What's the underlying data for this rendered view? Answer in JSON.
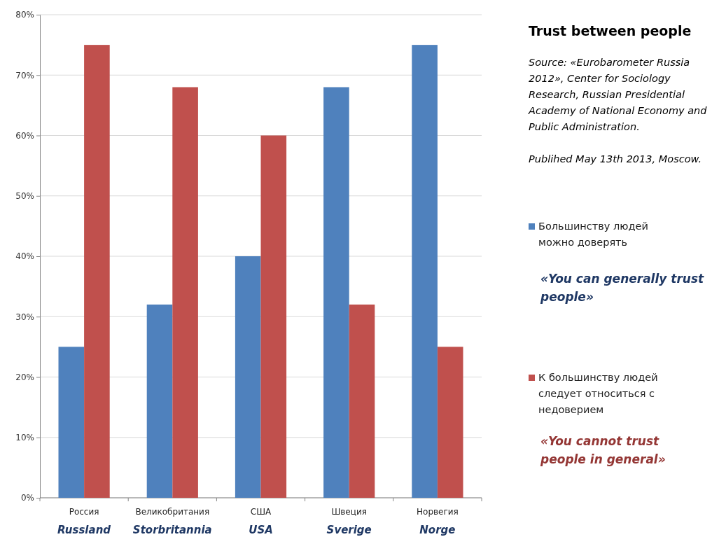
{
  "chart_data": {
    "type": "bar",
    "title": "Trust between people",
    "categories": [
      "Россия\nRussland",
      "Великобритания\nStorbritannia",
      "США\nUSA",
      "Швеция\nSverige",
      "Норвегия\nNorge"
    ],
    "series": [
      {
        "name": "Большинству людей можно доверять",
        "color": "#4f81bd",
        "values": [
          25,
          32,
          40,
          68,
          75
        ]
      },
      {
        "name": "К большинству людей следует относиться с недоверием",
        "color": "#c0504d",
        "values": [
          75,
          68,
          60,
          32,
          25
        ]
      }
    ],
    "ylim": [
      0,
      80
    ],
    "yticks": [
      {
        "value": 0,
        "label": "0%"
      },
      {
        "value": 10,
        "label": "10%"
      },
      {
        "value": 20,
        "label": "20%"
      },
      {
        "value": 30,
        "label": "30%"
      },
      {
        "value": 40,
        "label": "40%"
      },
      {
        "value": 50,
        "label": "50%"
      },
      {
        "value": 60,
        "label": "60%"
      },
      {
        "value": 70,
        "label": "70%"
      },
      {
        "value": 80,
        "label": "80%"
      }
    ],
    "grid": "y",
    "legend": "right",
    "annotations": [
      "Source: «Eurobarometer Russia 2012», Center for Sociology Research, Russian Presidential Academy of National Economy and Public Administration.",
      "Publihed May 13th 2013, Moscow.",
      "«You can generally trust people»",
      "«You cannot trust people in general»"
    ]
  }
}
